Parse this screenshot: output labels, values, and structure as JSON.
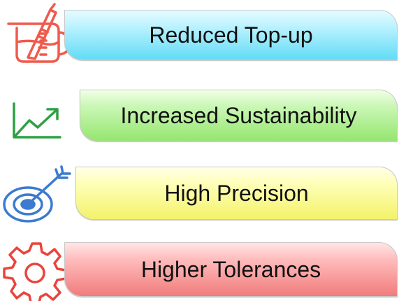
{
  "items": [
    {
      "label": "Reduced Top-up",
      "icon": "beaker-pipette-icon",
      "icon_color": "#ef5a4c"
    },
    {
      "label": "Increased Sustainability",
      "icon": "trend-up-chart-icon",
      "icon_color": "#2ea043"
    },
    {
      "label": "High Precision",
      "icon": "target-arrow-icon",
      "icon_color": "#3b7bd0"
    },
    {
      "label": "Higher Tolerances",
      "icon": "gear-icon",
      "icon_color": "#e8453c"
    }
  ],
  "colors": {
    "banner_1": "#62dcf6",
    "banner_2": "#95e66f",
    "banner_3": "#f3f26a",
    "banner_4": "#f17c7c"
  }
}
